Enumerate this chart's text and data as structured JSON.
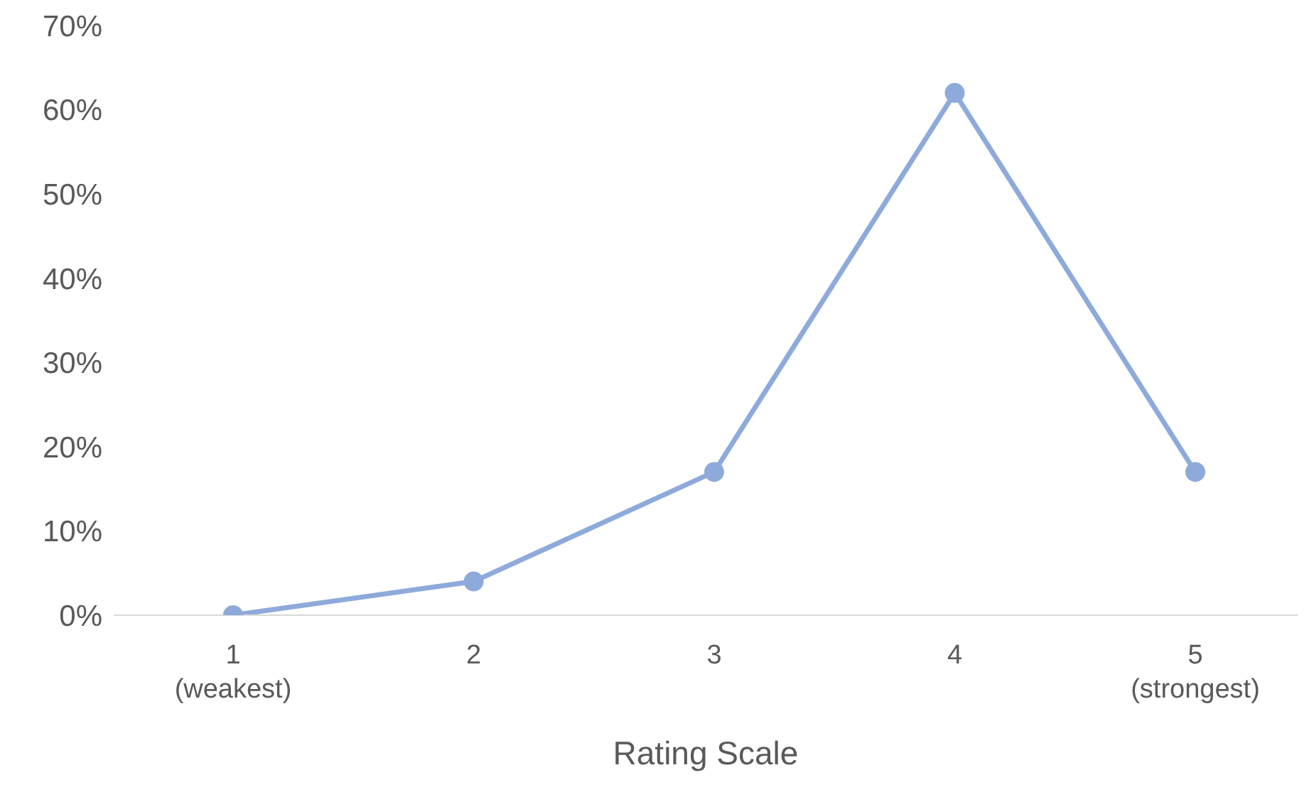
{
  "chart_data": {
    "type": "line",
    "xlabel": "Rating Scale",
    "categories": [
      "1\n(weakest)",
      "2",
      "3",
      "4",
      "5\n(strongest)"
    ],
    "series": [
      {
        "color": "#8eaadb",
        "values": [
          0,
          4,
          17,
          62,
          17
        ]
      }
    ],
    "ylim": [
      0,
      70
    ],
    "yticks": [
      {
        "value": 0,
        "label": "0%"
      },
      {
        "value": 10,
        "label": "10%"
      },
      {
        "value": 20,
        "label": "20%"
      },
      {
        "value": 30,
        "label": "30%"
      },
      {
        "value": 40,
        "label": "40%"
      },
      {
        "value": 50,
        "label": "50%"
      },
      {
        "value": 60,
        "label": "60%"
      },
      {
        "value": 70,
        "label": "70%"
      }
    ],
    "grid": false,
    "legend": false,
    "marker": "circle",
    "line_style": "solid"
  }
}
